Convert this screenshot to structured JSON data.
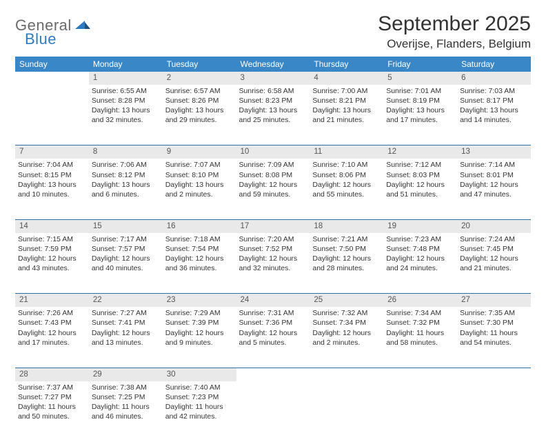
{
  "logo": {
    "general": "General",
    "blue": "Blue"
  },
  "title": "September 2025",
  "location": "Overijse, Flanders, Belgium",
  "colors": {
    "header_bg": "#3a87c8",
    "header_text": "#ffffff",
    "daynum_bg": "#e9e9e9",
    "daynum_text": "#555555",
    "body_text": "#333333",
    "rule": "#2f6da6",
    "logo_gray": "#6a6a6a",
    "logo_blue": "#2f7bbf",
    "page_bg": "#ffffff"
  },
  "weekdays": [
    "Sunday",
    "Monday",
    "Tuesday",
    "Wednesday",
    "Thursday",
    "Friday",
    "Saturday"
  ],
  "weeks": [
    {
      "nums": [
        "",
        "1",
        "2",
        "3",
        "4",
        "5",
        "6"
      ],
      "cells": [
        {
          "sunrise": "",
          "sunset": "",
          "daylight": ""
        },
        {
          "sunrise": "Sunrise: 6:55 AM",
          "sunset": "Sunset: 8:28 PM",
          "daylight": "Daylight: 13 hours and 32 minutes."
        },
        {
          "sunrise": "Sunrise: 6:57 AM",
          "sunset": "Sunset: 8:26 PM",
          "daylight": "Daylight: 13 hours and 29 minutes."
        },
        {
          "sunrise": "Sunrise: 6:58 AM",
          "sunset": "Sunset: 8:23 PM",
          "daylight": "Daylight: 13 hours and 25 minutes."
        },
        {
          "sunrise": "Sunrise: 7:00 AM",
          "sunset": "Sunset: 8:21 PM",
          "daylight": "Daylight: 13 hours and 21 minutes."
        },
        {
          "sunrise": "Sunrise: 7:01 AM",
          "sunset": "Sunset: 8:19 PM",
          "daylight": "Daylight: 13 hours and 17 minutes."
        },
        {
          "sunrise": "Sunrise: 7:03 AM",
          "sunset": "Sunset: 8:17 PM",
          "daylight": "Daylight: 13 hours and 14 minutes."
        }
      ]
    },
    {
      "nums": [
        "7",
        "8",
        "9",
        "10",
        "11",
        "12",
        "13"
      ],
      "cells": [
        {
          "sunrise": "Sunrise: 7:04 AM",
          "sunset": "Sunset: 8:15 PM",
          "daylight": "Daylight: 13 hours and 10 minutes."
        },
        {
          "sunrise": "Sunrise: 7:06 AM",
          "sunset": "Sunset: 8:12 PM",
          "daylight": "Daylight: 13 hours and 6 minutes."
        },
        {
          "sunrise": "Sunrise: 7:07 AM",
          "sunset": "Sunset: 8:10 PM",
          "daylight": "Daylight: 13 hours and 2 minutes."
        },
        {
          "sunrise": "Sunrise: 7:09 AM",
          "sunset": "Sunset: 8:08 PM",
          "daylight": "Daylight: 12 hours and 59 minutes."
        },
        {
          "sunrise": "Sunrise: 7:10 AM",
          "sunset": "Sunset: 8:06 PM",
          "daylight": "Daylight: 12 hours and 55 minutes."
        },
        {
          "sunrise": "Sunrise: 7:12 AM",
          "sunset": "Sunset: 8:03 PM",
          "daylight": "Daylight: 12 hours and 51 minutes."
        },
        {
          "sunrise": "Sunrise: 7:14 AM",
          "sunset": "Sunset: 8:01 PM",
          "daylight": "Daylight: 12 hours and 47 minutes."
        }
      ]
    },
    {
      "nums": [
        "14",
        "15",
        "16",
        "17",
        "18",
        "19",
        "20"
      ],
      "cells": [
        {
          "sunrise": "Sunrise: 7:15 AM",
          "sunset": "Sunset: 7:59 PM",
          "daylight": "Daylight: 12 hours and 43 minutes."
        },
        {
          "sunrise": "Sunrise: 7:17 AM",
          "sunset": "Sunset: 7:57 PM",
          "daylight": "Daylight: 12 hours and 40 minutes."
        },
        {
          "sunrise": "Sunrise: 7:18 AM",
          "sunset": "Sunset: 7:54 PM",
          "daylight": "Daylight: 12 hours and 36 minutes."
        },
        {
          "sunrise": "Sunrise: 7:20 AM",
          "sunset": "Sunset: 7:52 PM",
          "daylight": "Daylight: 12 hours and 32 minutes."
        },
        {
          "sunrise": "Sunrise: 7:21 AM",
          "sunset": "Sunset: 7:50 PM",
          "daylight": "Daylight: 12 hours and 28 minutes."
        },
        {
          "sunrise": "Sunrise: 7:23 AM",
          "sunset": "Sunset: 7:48 PM",
          "daylight": "Daylight: 12 hours and 24 minutes."
        },
        {
          "sunrise": "Sunrise: 7:24 AM",
          "sunset": "Sunset: 7:45 PM",
          "daylight": "Daylight: 12 hours and 21 minutes."
        }
      ]
    },
    {
      "nums": [
        "21",
        "22",
        "23",
        "24",
        "25",
        "26",
        "27"
      ],
      "cells": [
        {
          "sunrise": "Sunrise: 7:26 AM",
          "sunset": "Sunset: 7:43 PM",
          "daylight": "Daylight: 12 hours and 17 minutes."
        },
        {
          "sunrise": "Sunrise: 7:27 AM",
          "sunset": "Sunset: 7:41 PM",
          "daylight": "Daylight: 12 hours and 13 minutes."
        },
        {
          "sunrise": "Sunrise: 7:29 AM",
          "sunset": "Sunset: 7:39 PM",
          "daylight": "Daylight: 12 hours and 9 minutes."
        },
        {
          "sunrise": "Sunrise: 7:31 AM",
          "sunset": "Sunset: 7:36 PM",
          "daylight": "Daylight: 12 hours and 5 minutes."
        },
        {
          "sunrise": "Sunrise: 7:32 AM",
          "sunset": "Sunset: 7:34 PM",
          "daylight": "Daylight: 12 hours and 2 minutes."
        },
        {
          "sunrise": "Sunrise: 7:34 AM",
          "sunset": "Sunset: 7:32 PM",
          "daylight": "Daylight: 11 hours and 58 minutes."
        },
        {
          "sunrise": "Sunrise: 7:35 AM",
          "sunset": "Sunset: 7:30 PM",
          "daylight": "Daylight: 11 hours and 54 minutes."
        }
      ]
    },
    {
      "nums": [
        "28",
        "29",
        "30",
        "",
        "",
        "",
        ""
      ],
      "cells": [
        {
          "sunrise": "Sunrise: 7:37 AM",
          "sunset": "Sunset: 7:27 PM",
          "daylight": "Daylight: 11 hours and 50 minutes."
        },
        {
          "sunrise": "Sunrise: 7:38 AM",
          "sunset": "Sunset: 7:25 PM",
          "daylight": "Daylight: 11 hours and 46 minutes."
        },
        {
          "sunrise": "Sunrise: 7:40 AM",
          "sunset": "Sunset: 7:23 PM",
          "daylight": "Daylight: 11 hours and 42 minutes."
        },
        {
          "sunrise": "",
          "sunset": "",
          "daylight": ""
        },
        {
          "sunrise": "",
          "sunset": "",
          "daylight": ""
        },
        {
          "sunrise": "",
          "sunset": "",
          "daylight": ""
        },
        {
          "sunrise": "",
          "sunset": "",
          "daylight": ""
        }
      ]
    }
  ]
}
